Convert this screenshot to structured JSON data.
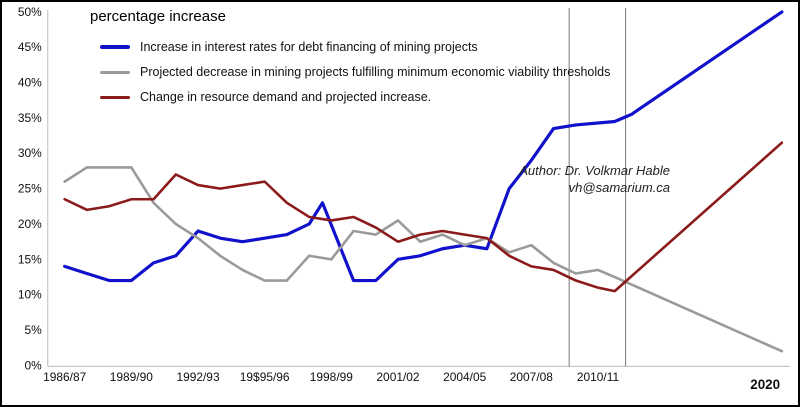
{
  "title": "percentage increase",
  "author": {
    "line1": "Author: Dr. Volkmar Hable",
    "line2": "vh@samarium.ca"
  },
  "legend": [
    {
      "label": "Increase in interest rates  for debt financing of mining projects"
    },
    {
      "label": "Projected decrease in mining projects fulfilling minimum economic viability thresholds"
    },
    {
      "label": "Change in resource demand and projected increase."
    }
  ],
  "chart_data": {
    "type": "line",
    "title": "percentage increase",
    "xlabel": "",
    "ylabel": "",
    "ylim": [
      0,
      50
    ],
    "grid": "none",
    "legend_position": "top-left",
    "y_ticks": [
      {
        "value": 0,
        "label": "0%"
      },
      {
        "value": 5,
        "label": "5%"
      },
      {
        "value": 10,
        "label": "10%"
      },
      {
        "value": 15,
        "label": "15%"
      },
      {
        "value": 20,
        "label": "20%"
      },
      {
        "value": 25,
        "label": "25%"
      },
      {
        "value": 30,
        "label": "30%"
      },
      {
        "value": 35,
        "label": "35%"
      },
      {
        "value": 40,
        "label": "40%"
      },
      {
        "value": 45,
        "label": "45%"
      },
      {
        "value": 50,
        "label": "50%"
      }
    ],
    "x_ticks": [
      {
        "year": 1986,
        "label": "1986/87"
      },
      {
        "year": 1989,
        "label": "1989/90"
      },
      {
        "year": 1992,
        "label": "1992/93"
      },
      {
        "year": 1995,
        "label": "19$95/96"
      },
      {
        "year": 1998,
        "label": "1998/99"
      },
      {
        "year": 2001,
        "label": "2001/02"
      },
      {
        "year": 2004,
        "label": "2004/05"
      },
      {
        "year": 2007,
        "label": "2007/08"
      },
      {
        "year": 2010,
        "label": "2010/11"
      },
      {
        "year": 2020,
        "label": "2020",
        "bold": true
      }
    ],
    "band_years": [
      2008.7,
      2011.65
    ],
    "series": [
      {
        "name": "Increase in interest rates for debt financing of mining projects",
        "color": "#1111cc",
        "width": 3.2,
        "points": [
          [
            1986,
            14
          ],
          [
            1987,
            13
          ],
          [
            1988,
            12
          ],
          [
            1989,
            12
          ],
          [
            1990,
            14.5
          ],
          [
            1991,
            15.5
          ],
          [
            1992,
            19
          ],
          [
            1993,
            18
          ],
          [
            1994,
            17.5
          ],
          [
            1995,
            18
          ],
          [
            1996,
            18.5
          ],
          [
            1997,
            20
          ],
          [
            1997.6,
            23
          ],
          [
            1999,
            12
          ],
          [
            2000,
            12
          ],
          [
            2001,
            15
          ],
          [
            2002,
            15.5
          ],
          [
            2003,
            16.5
          ],
          [
            2004,
            17
          ],
          [
            2005,
            16.5
          ],
          [
            2006,
            25
          ],
          [
            2007,
            29
          ],
          [
            2008,
            33.5
          ],
          [
            2009,
            34
          ],
          [
            2011,
            34.5
          ],
          [
            2012,
            35.5
          ],
          [
            2021,
            50
          ]
        ]
      },
      {
        "name": "Projected decrease in mining projects fulfilling minimum economic viability thresholds",
        "color": "#9a9a9a",
        "width": 2.6,
        "points": [
          [
            1986,
            26
          ],
          [
            1987,
            28
          ],
          [
            1989,
            28
          ],
          [
            1990,
            23
          ],
          [
            1991,
            20
          ],
          [
            1992,
            18
          ],
          [
            1993,
            15.5
          ],
          [
            1994,
            13.5
          ],
          [
            1995,
            12
          ],
          [
            1996,
            12
          ],
          [
            1997,
            15.5
          ],
          [
            1998,
            15
          ],
          [
            1999,
            19
          ],
          [
            2000,
            18.5
          ],
          [
            2001,
            20.5
          ],
          [
            2002,
            17.5
          ],
          [
            2003,
            18.5
          ],
          [
            2004,
            17
          ],
          [
            2005,
            18
          ],
          [
            2006,
            16
          ],
          [
            2007,
            17
          ],
          [
            2008,
            14.5
          ],
          [
            2009,
            13
          ],
          [
            2010,
            13.5
          ],
          [
            2011,
            12.5
          ],
          [
            2021,
            2
          ]
        ]
      },
      {
        "name": "Change in resource demand and projected increase.",
        "color": "#8b1a1a",
        "width": 2.6,
        "points": [
          [
            1986,
            23.5
          ],
          [
            1987,
            22
          ],
          [
            1988,
            22.5
          ],
          [
            1989,
            23.5
          ],
          [
            1990,
            23.5
          ],
          [
            1991,
            27
          ],
          [
            1992,
            25.5
          ],
          [
            1993,
            25
          ],
          [
            1994,
            25.5
          ],
          [
            1995,
            26
          ],
          [
            1996,
            23
          ],
          [
            1997,
            21
          ],
          [
            1998,
            20.5
          ],
          [
            1999,
            21
          ],
          [
            2000,
            19.5
          ],
          [
            2001,
            17.5
          ],
          [
            2002,
            18.5
          ],
          [
            2003,
            19
          ],
          [
            2004,
            18.5
          ],
          [
            2005,
            18
          ],
          [
            2006,
            15.5
          ],
          [
            2007,
            14
          ],
          [
            2008,
            13.5
          ],
          [
            2009,
            12
          ],
          [
            2010,
            11
          ],
          [
            2011,
            10.5
          ],
          [
            2021,
            31.5
          ]
        ]
      }
    ]
  }
}
